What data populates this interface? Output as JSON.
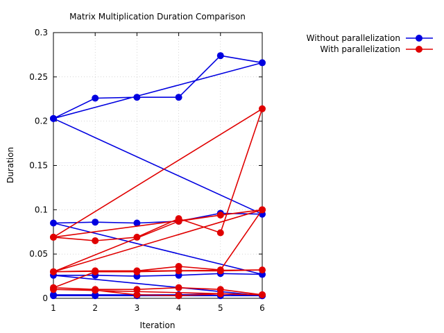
{
  "chart_data": {
    "type": "line",
    "title": "Matrix Multiplication Duration Comparison",
    "xlabel": "Iteration",
    "ylabel": "Duration",
    "xlim": [
      1,
      6
    ],
    "ylim": [
      0,
      0.3
    ],
    "x_ticks": [
      "1",
      "2",
      "3",
      "4",
      "5",
      "6"
    ],
    "y_ticks": [
      "0",
      "0.05",
      "0.1",
      "0.15",
      "0.2",
      "0.25",
      "0.3"
    ],
    "grid": true,
    "legend_position": "top-right, outside plot",
    "series": [
      {
        "name": "Without parallelization",
        "color": "#0000e0",
        "points": [
          [
            1,
            0.203
          ],
          [
            2,
            0.226
          ],
          [
            3,
            0.227
          ],
          [
            4,
            0.227
          ],
          [
            5,
            0.274
          ],
          [
            6,
            0.266
          ],
          [
            1,
            0.203
          ],
          [
            6,
            0.095
          ],
          [
            5,
            0.096
          ],
          [
            4,
            0.087
          ],
          [
            3,
            0.085
          ],
          [
            2,
            0.086
          ],
          [
            1,
            0.085
          ],
          [
            6,
            0.027
          ],
          [
            5,
            0.028
          ],
          [
            4,
            0.026
          ],
          [
            3,
            0.025
          ],
          [
            2,
            0.026
          ],
          [
            1,
            0.026
          ],
          [
            6,
            0.003
          ],
          [
            5,
            0.003
          ],
          [
            4,
            0.003
          ],
          [
            3,
            0.003
          ],
          [
            2,
            0.003
          ],
          [
            1,
            0.003
          ],
          [
            6,
            0.003
          ],
          [
            5,
            0.005
          ],
          [
            4,
            0.004
          ],
          [
            3,
            0.004
          ],
          [
            2,
            0.004
          ],
          [
            1,
            0.004
          ],
          [
            6,
            0.003
          ]
        ]
      },
      {
        "name": "With parallelization",
        "color": "#e00000",
        "points": [
          [
            1,
            0.069
          ],
          [
            2,
            0.065
          ],
          [
            3,
            0.069
          ],
          [
            4,
            0.09
          ],
          [
            5,
            0.074
          ],
          [
            6,
            0.214
          ],
          [
            1,
            0.069
          ],
          [
            6,
            0.1
          ],
          [
            5,
            0.094
          ],
          [
            4,
            0.087
          ],
          [
            1,
            0.03
          ],
          [
            2,
            0.031
          ],
          [
            3,
            0.031
          ],
          [
            4,
            0.036
          ],
          [
            5,
            0.032
          ],
          [
            6,
            0.1
          ],
          [
            1,
            0.03
          ],
          [
            6,
            0.032
          ],
          [
            5,
            0.031
          ],
          [
            4,
            0.031
          ],
          [
            3,
            0.03
          ],
          [
            2,
            0.03
          ],
          [
            1,
            0.012
          ],
          [
            2,
            0.01
          ],
          [
            3,
            0.01
          ],
          [
            4,
            0.012
          ],
          [
            5,
            0.01
          ],
          [
            6,
            0.004
          ],
          [
            1,
            0.01
          ],
          [
            2,
            0.009
          ],
          [
            3,
            0.004
          ],
          [
            4,
            0.003
          ],
          [
            5,
            0.005
          ],
          [
            6,
            0.004
          ]
        ]
      }
    ]
  }
}
